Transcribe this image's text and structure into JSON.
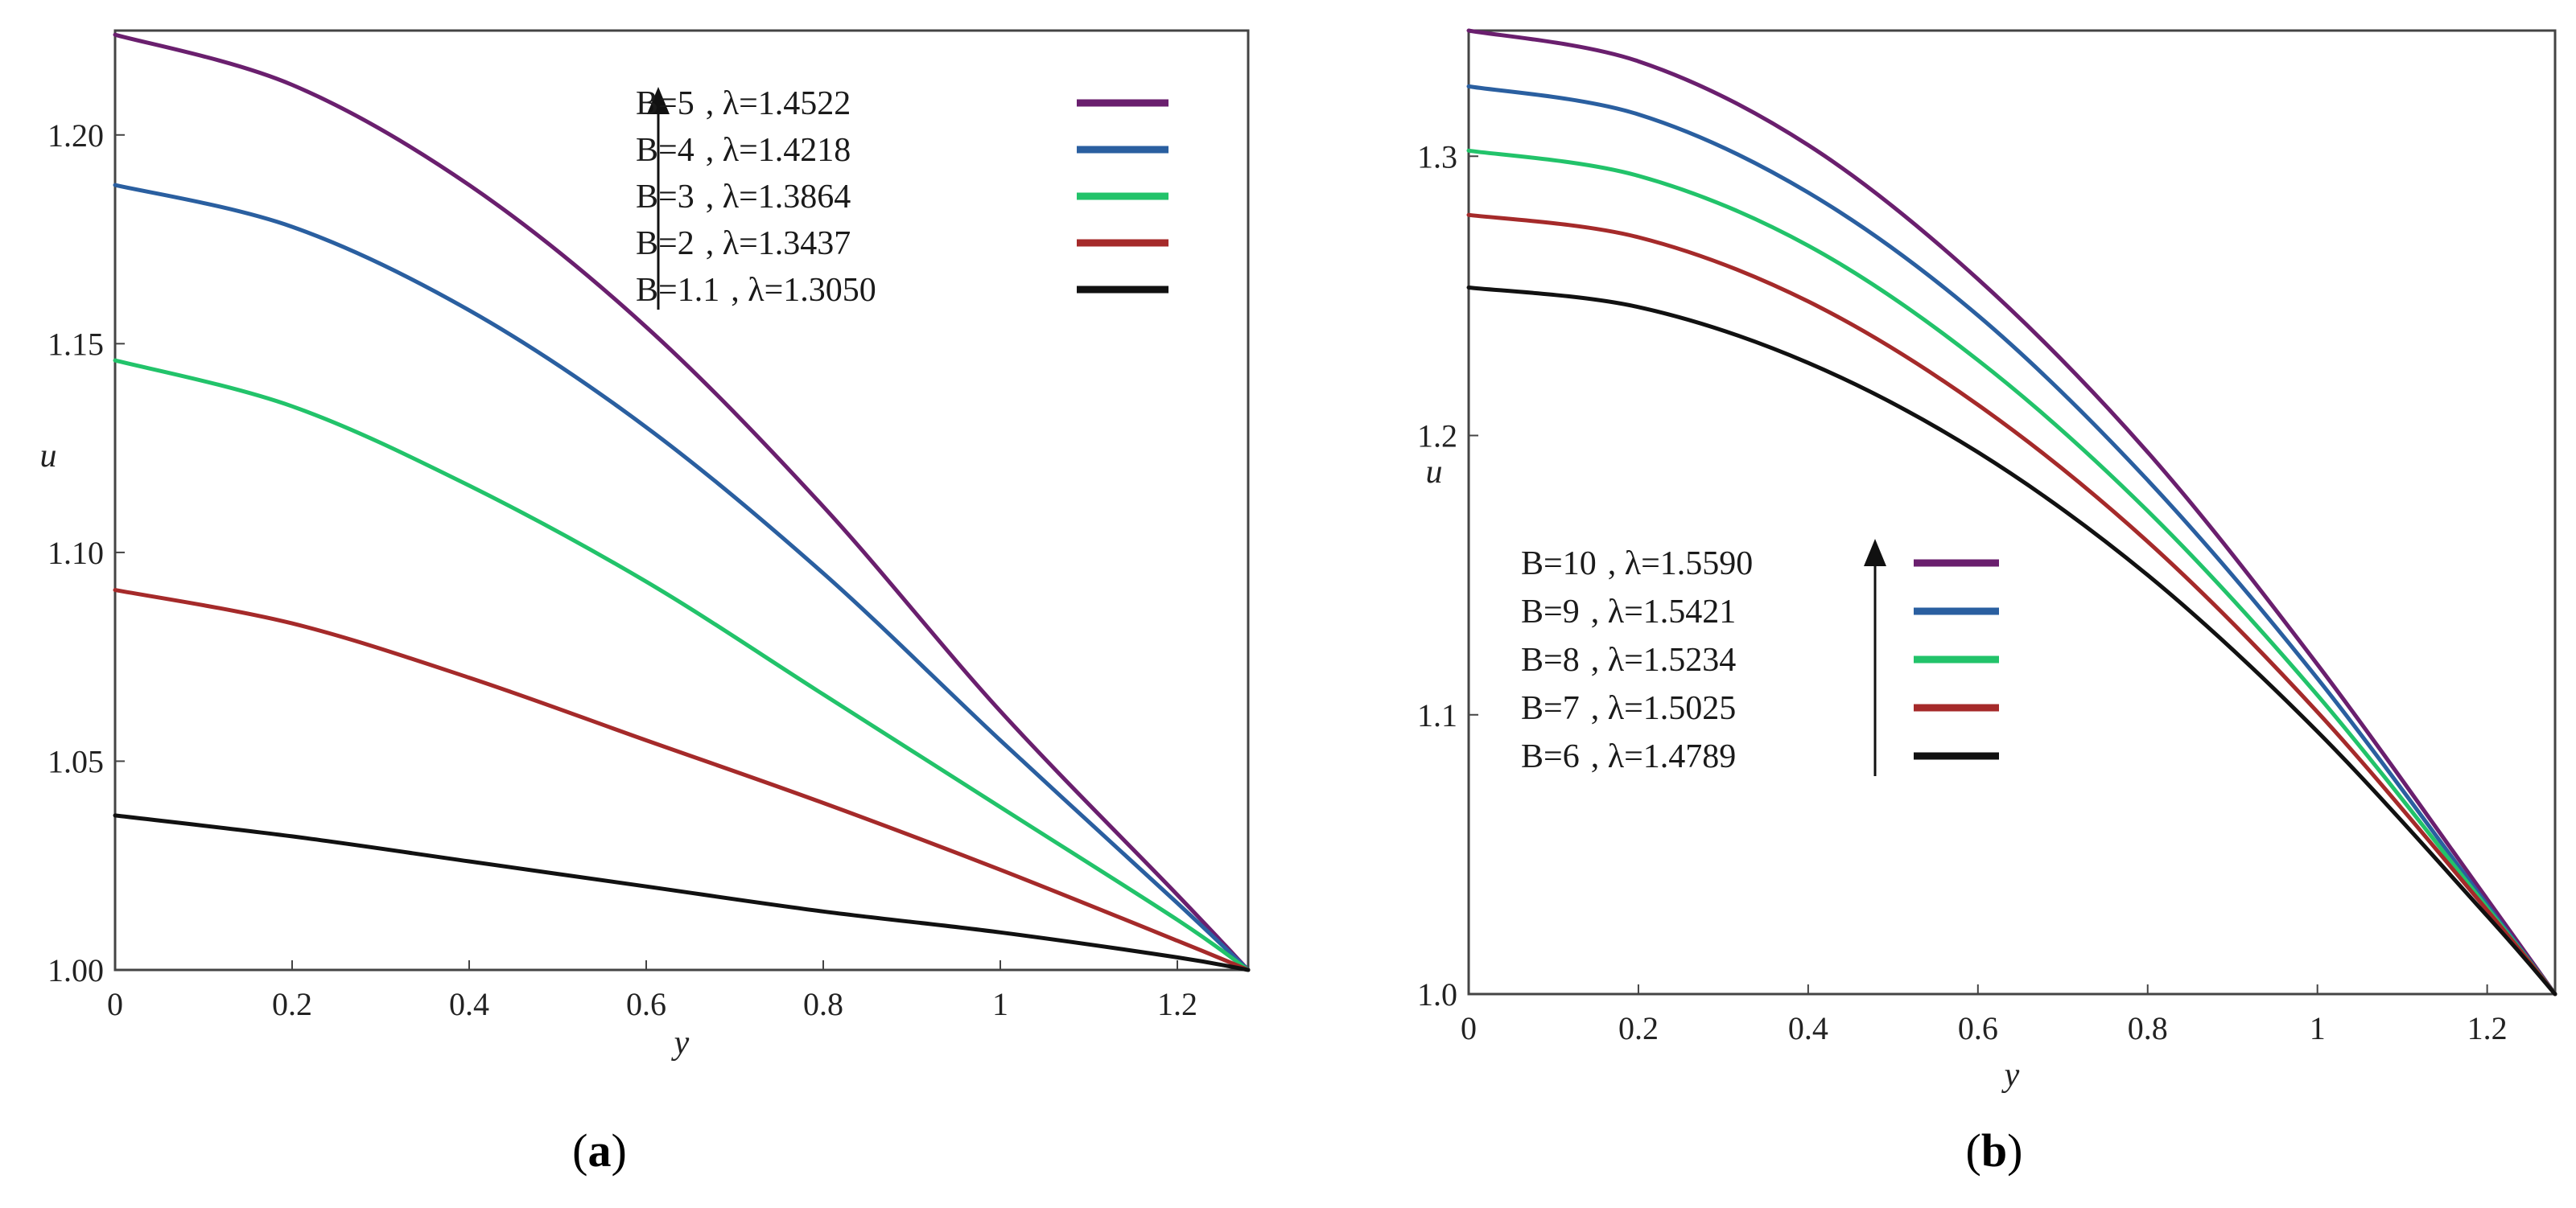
{
  "chart_data": [
    {
      "type": "line",
      "panel_label": "(a)",
      "caption": {
        "open": "(",
        "letter": "a",
        "close": ")"
      },
      "xlabel": "y",
      "ylabel": "u",
      "xlim": [
        0,
        1.28
      ],
      "ylim": [
        1.0,
        1.225
      ],
      "xticks": [
        0,
        0.2,
        0.4,
        0.6,
        0.8,
        1,
        1.2
      ],
      "xtick_labels": [
        "0",
        "0.2",
        "0.4",
        "0.6",
        "0.8",
        "1",
        "1.2"
      ],
      "yticks": [
        1.0,
        1.05,
        1.1,
        1.15,
        1.2
      ],
      "ytick_labels": [
        "1.00",
        "1.05",
        "1.10",
        "1.15",
        "1.20"
      ],
      "legend_position": "top-right",
      "legend_arrow": "up",
      "series": [
        {
          "name": "B=5",
          "lambda_label": ", λ=1.4522",
          "color": "#6a1f6e",
          "x": [
            0,
            0.2,
            0.4,
            0.6,
            0.8,
            1.0,
            1.2,
            1.28
          ],
          "y": [
            1.224,
            1.212,
            1.188,
            1.154,
            1.111,
            1.062,
            1.018,
            1.0
          ]
        },
        {
          "name": "B=4",
          "lambda_label": ", λ=1.4218",
          "color": "#2a5fa0",
          "x": [
            0,
            0.2,
            0.4,
            0.6,
            0.8,
            1.0,
            1.2,
            1.28
          ],
          "y": [
            1.188,
            1.178,
            1.158,
            1.13,
            1.095,
            1.055,
            1.016,
            1.0
          ]
        },
        {
          "name": "B=3",
          "lambda_label": ", λ=1.3864",
          "color": "#22c36a",
          "x": [
            0,
            0.2,
            0.4,
            0.6,
            0.8,
            1.0,
            1.2,
            1.28
          ],
          "y": [
            1.146,
            1.135,
            1.116,
            1.093,
            1.066,
            1.039,
            1.012,
            1.0
          ]
        },
        {
          "name": "B=2",
          "lambda_label": ", λ=1.3437",
          "color": "#a52a2a",
          "x": [
            0,
            0.2,
            0.4,
            0.6,
            0.8,
            1.0,
            1.2,
            1.28
          ],
          "y": [
            1.091,
            1.083,
            1.07,
            1.055,
            1.04,
            1.024,
            1.007,
            1.0
          ]
        },
        {
          "name": "B=1.1",
          "lambda_label": ", λ=1.3050",
          "color": "#111111",
          "x": [
            0,
            0.2,
            0.4,
            0.6,
            0.8,
            1.0,
            1.2,
            1.28
          ],
          "y": [
            1.037,
            1.032,
            1.026,
            1.02,
            1.014,
            1.009,
            1.003,
            1.0
          ]
        }
      ]
    },
    {
      "type": "line",
      "panel_label": "(b)",
      "caption": {
        "open": "(",
        "letter": "b",
        "close": ")"
      },
      "xlabel": "y",
      "ylabel": "u",
      "xlim": [
        0,
        1.28
      ],
      "ylim": [
        1.0,
        1.345
      ],
      "xticks": [
        0,
        0.2,
        0.4,
        0.6,
        0.8,
        1,
        1.2
      ],
      "xtick_labels": [
        "0",
        "0.2",
        "0.4",
        "0.6",
        "0.8",
        "1",
        "1.2"
      ],
      "yticks": [
        1.0,
        1.1,
        1.2,
        1.3
      ],
      "ytick_labels": [
        "1.0",
        "1.1",
        "1.2",
        "1.3"
      ],
      "legend_position": "center-left",
      "legend_arrow": "up",
      "series": [
        {
          "name": "B=10",
          "lambda_label": ", λ=1.5590",
          "color": "#6a1f6e",
          "x": [
            0,
            0.2,
            0.4,
            0.6,
            0.8,
            1.0,
            1.2,
            1.28
          ],
          "y": [
            1.345,
            1.334,
            1.304,
            1.256,
            1.194,
            1.118,
            1.034,
            1.0
          ]
        },
        {
          "name": "B=9",
          "lambda_label": ", λ=1.5421",
          "color": "#2a5fa0",
          "x": [
            0,
            0.2,
            0.4,
            0.6,
            0.8,
            1.0,
            1.2,
            1.28
          ],
          "y": [
            1.325,
            1.315,
            1.287,
            1.243,
            1.184,
            1.113,
            1.032,
            1.0
          ]
        },
        {
          "name": "B=8",
          "lambda_label": ", λ=1.5234",
          "color": "#22c36a",
          "x": [
            0,
            0.2,
            0.4,
            0.6,
            0.8,
            1.0,
            1.2,
            1.28
          ],
          "y": [
            1.302,
            1.293,
            1.268,
            1.227,
            1.173,
            1.107,
            1.031,
            1.0
          ]
        },
        {
          "name": "B=7",
          "lambda_label": ", λ=1.5025",
          "color": "#a52a2a",
          "x": [
            0,
            0.2,
            0.4,
            0.6,
            0.8,
            1.0,
            1.2,
            1.28
          ],
          "y": [
            1.279,
            1.271,
            1.248,
            1.211,
            1.162,
            1.101,
            1.03,
            1.0
          ]
        },
        {
          "name": "B=6",
          "lambda_label": ", λ=1.4789",
          "color": "#111111",
          "x": [
            0,
            0.2,
            0.4,
            0.6,
            0.8,
            1.0,
            1.2,
            1.28
          ],
          "y": [
            1.253,
            1.246,
            1.226,
            1.194,
            1.15,
            1.094,
            1.028,
            1.0
          ]
        }
      ]
    }
  ]
}
